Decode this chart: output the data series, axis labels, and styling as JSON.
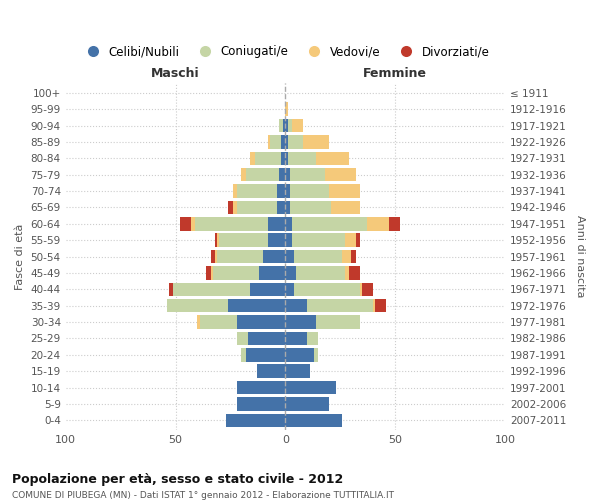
{
  "age_groups": [
    "100+",
    "95-99",
    "90-94",
    "85-89",
    "80-84",
    "75-79",
    "70-74",
    "65-69",
    "60-64",
    "55-59",
    "50-54",
    "45-49",
    "40-44",
    "35-39",
    "30-34",
    "25-29",
    "20-24",
    "15-19",
    "10-14",
    "5-9",
    "0-4"
  ],
  "birth_years": [
    "≤ 1911",
    "1912-1916",
    "1917-1921",
    "1922-1926",
    "1927-1931",
    "1932-1936",
    "1937-1941",
    "1942-1946",
    "1947-1951",
    "1952-1956",
    "1957-1961",
    "1962-1966",
    "1967-1971",
    "1972-1976",
    "1977-1981",
    "1982-1986",
    "1987-1991",
    "1992-1996",
    "1997-2001",
    "2002-2006",
    "2007-2011"
  ],
  "maschi": {
    "celibi": [
      0,
      0,
      1,
      2,
      2,
      3,
      4,
      4,
      8,
      8,
      10,
      12,
      16,
      26,
      22,
      17,
      18,
      13,
      22,
      22,
      27
    ],
    "coniugati": [
      0,
      0,
      2,
      5,
      12,
      15,
      18,
      18,
      33,
      22,
      21,
      21,
      35,
      28,
      17,
      5,
      2,
      0,
      0,
      0,
      0
    ],
    "vedovi": [
      0,
      0,
      0,
      1,
      2,
      2,
      2,
      2,
      2,
      1,
      1,
      1,
      0,
      0,
      1,
      0,
      0,
      0,
      0,
      0,
      0
    ],
    "divorziati": [
      0,
      0,
      0,
      0,
      0,
      0,
      0,
      2,
      5,
      1,
      2,
      2,
      2,
      0,
      0,
      0,
      0,
      0,
      0,
      0,
      0
    ]
  },
  "femmine": {
    "nubili": [
      0,
      0,
      1,
      1,
      1,
      2,
      2,
      2,
      3,
      3,
      4,
      5,
      4,
      10,
      14,
      10,
      13,
      11,
      23,
      20,
      26
    ],
    "coniugate": [
      0,
      0,
      2,
      7,
      13,
      16,
      18,
      19,
      34,
      24,
      22,
      22,
      30,
      30,
      20,
      5,
      2,
      0,
      0,
      0,
      0
    ],
    "vedove": [
      0,
      1,
      5,
      12,
      15,
      14,
      14,
      13,
      10,
      5,
      4,
      2,
      1,
      1,
      0,
      0,
      0,
      0,
      0,
      0,
      0
    ],
    "divorziate": [
      0,
      0,
      0,
      0,
      0,
      0,
      0,
      0,
      5,
      2,
      2,
      5,
      5,
      5,
      0,
      0,
      0,
      0,
      0,
      0,
      0
    ]
  },
  "colors": {
    "celibi": "#4472a8",
    "coniugati": "#c5d5a5",
    "vedovi": "#f5c97a",
    "divorziati": "#c0392b"
  },
  "title": "Popolazione per età, sesso e stato civile - 2012",
  "subtitle": "COMUNE DI PIUBEGA (MN) - Dati ISTAT 1° gennaio 2012 - Elaborazione TUTTITALIA.IT",
  "xlabel_left": "Maschi",
  "xlabel_right": "Femmine",
  "ylabel_left": "Fasce di età",
  "ylabel_right": "Anni di nascita",
  "xlim": 100,
  "background_color": "#ffffff",
  "grid_color": "#cccccc",
  "legend_labels": [
    "Celibi/Nubili",
    "Coniugati/e",
    "Vedovi/e",
    "Divorziati/e"
  ]
}
